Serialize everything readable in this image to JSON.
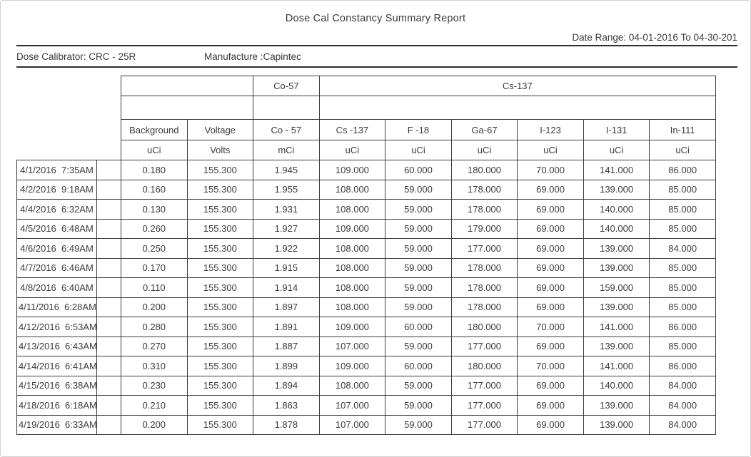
{
  "report": {
    "title": "Dose Cal Constancy Summary Report",
    "date_range": "Date Range: 04-01-2016 To 04-30-201",
    "calibrator": "Dose Calibrator: CRC - 25R",
    "manufacture": "Manufacture :Capintec"
  },
  "table": {
    "group_headers": {
      "co57": "Co-57",
      "cs137": "Cs-137"
    },
    "columns": [
      "Background",
      "Voltage",
      "Co - 57",
      "Cs -137",
      "F -18",
      "Ga-67",
      "I-123",
      "I-131",
      "In-111"
    ],
    "units": [
      "uCi",
      "Volts",
      "mCi",
      "uCi",
      "uCi",
      "uCi",
      "uCi",
      "uCi",
      "uCi"
    ],
    "rows": [
      {
        "datetime": "4/1/2016  7:35AM",
        "values": [
          "0.180",
          "155.300",
          "1.945",
          "109.000",
          "60.000",
          "180.000",
          "70.000",
          "141.000",
          "86.000"
        ]
      },
      {
        "datetime": "4/2/2016  9:18AM",
        "values": [
          "0.160",
          "155.300",
          "1.955",
          "108.000",
          "59.000",
          "178.000",
          "69.000",
          "139.000",
          "85.000"
        ]
      },
      {
        "datetime": "4/4/2016  6:32AM",
        "values": [
          "0.130",
          "155.300",
          "1.931",
          "108.000",
          "59.000",
          "178.000",
          "69.000",
          "140.000",
          "85.000"
        ]
      },
      {
        "datetime": "4/5/2016  6:48AM",
        "values": [
          "0.260",
          "155.300",
          "1.927",
          "109.000",
          "59.000",
          "179.000",
          "69.000",
          "140.000",
          "85.000"
        ]
      },
      {
        "datetime": "4/6/2016  6:49AM",
        "values": [
          "0.250",
          "155.300",
          "1.922",
          "108.000",
          "59.000",
          "177.000",
          "69.000",
          "139.000",
          "84.000"
        ]
      },
      {
        "datetime": "4/7/2016  6:46AM",
        "values": [
          "0.170",
          "155.300",
          "1.915",
          "108.000",
          "59.000",
          "178.000",
          "69.000",
          "139.000",
          "85.000"
        ]
      },
      {
        "datetime": "4/8/2016  6:40AM",
        "values": [
          "0.110",
          "155.300",
          "1.914",
          "108.000",
          "59.000",
          "178.000",
          "69.000",
          "159.000",
          "85.000"
        ]
      },
      {
        "datetime": "4/11/2016  6:28AM",
        "values": [
          "0.200",
          "155.300",
          "1.897",
          "108.000",
          "59.000",
          "178.000",
          "69.000",
          "139.000",
          "85.000"
        ]
      },
      {
        "datetime": "4/12/2016  6:53AM",
        "values": [
          "0.280",
          "155.300",
          "1.891",
          "109.000",
          "60.000",
          "180.000",
          "70.000",
          "141.000",
          "86.000"
        ]
      },
      {
        "datetime": "4/13/2016  6:43AM",
        "values": [
          "0.270",
          "155.300",
          "1.887",
          "107.000",
          "59.000",
          "177.000",
          "69.000",
          "139.000",
          "85.000"
        ]
      },
      {
        "datetime": "4/14/2016  6:41AM",
        "values": [
          "0.310",
          "155.300",
          "1.899",
          "109.000",
          "60.000",
          "180.000",
          "70.000",
          "141.000",
          "86.000"
        ]
      },
      {
        "datetime": "4/15/2016  6:38AM",
        "values": [
          "0.230",
          "155.300",
          "1.894",
          "108.000",
          "59.000",
          "177.000",
          "69.000",
          "140.000",
          "84.000"
        ]
      },
      {
        "datetime": "4/18/2016  6:18AM",
        "values": [
          "0.210",
          "155.300",
          "1.863",
          "107.000",
          "59.000",
          "177.000",
          "69.000",
          "139.000",
          "84.000"
        ]
      },
      {
        "datetime": "4/19/2016  6:33AM",
        "values": [
          "0.200",
          "155.300",
          "1.878",
          "107.000",
          "59.000",
          "177.000",
          "69.000",
          "139.000",
          "84.000"
        ]
      }
    ]
  },
  "colors": {
    "table_border": "#3b3b3b",
    "rule": "#2e2e2e",
    "text": "#3a3a3a",
    "frame": "#d2d2d2",
    "background": "#ffffff"
  }
}
